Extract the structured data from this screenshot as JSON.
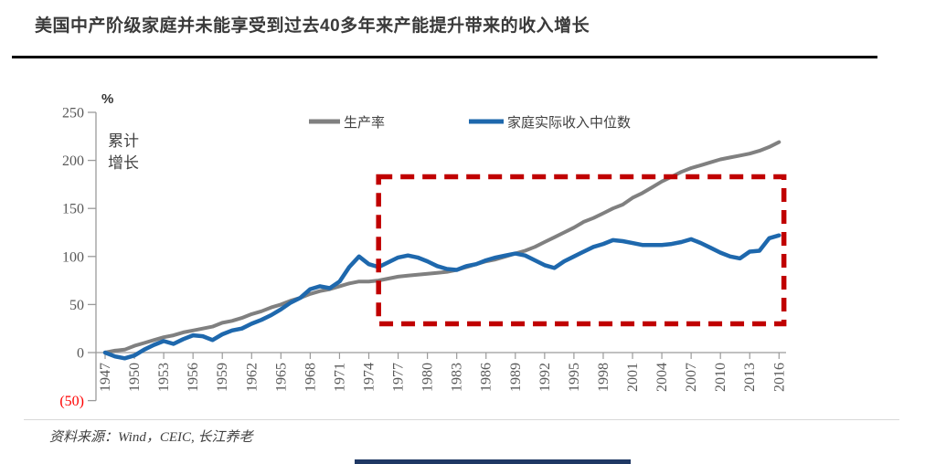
{
  "header": {
    "title": "美国中产阶级家庭并未能享受到过去40多年来产能提升带来的收入增长"
  },
  "chart_data": {
    "type": "line",
    "title": "美国中产阶级家庭并未能享受到过去40多年来产能提升带来的收入增长",
    "unit_label": "%",
    "axis_caption_lines": [
      "累计",
      "增长"
    ],
    "ylim": [
      -50,
      250
    ],
    "y_ticks": [
      250,
      200,
      150,
      100,
      50,
      0,
      -50
    ],
    "y_tick_labels": [
      "250",
      "200",
      "150",
      "100",
      "50",
      "0",
      "(50)"
    ],
    "x_tick_labels": [
      "1947",
      "1950",
      "1953",
      "1956",
      "1959",
      "1962",
      "1965",
      "1968",
      "1971",
      "1974",
      "1977",
      "1980",
      "1983",
      "1986",
      "1989",
      "1992",
      "1995",
      "1998",
      "2001",
      "2004",
      "2007",
      "2010",
      "2013",
      "2016"
    ],
    "x": [
      1947,
      1948,
      1949,
      1950,
      1951,
      1952,
      1953,
      1954,
      1955,
      1956,
      1957,
      1958,
      1959,
      1960,
      1961,
      1962,
      1963,
      1964,
      1965,
      1966,
      1967,
      1968,
      1969,
      1970,
      1971,
      1972,
      1973,
      1974,
      1975,
      1976,
      1977,
      1978,
      1979,
      1980,
      1981,
      1982,
      1983,
      1984,
      1985,
      1986,
      1987,
      1988,
      1989,
      1990,
      1991,
      1992,
      1993,
      1994,
      1995,
      1996,
      1997,
      1998,
      1999,
      2000,
      2001,
      2002,
      2003,
      2004,
      2005,
      2006,
      2007,
      2008,
      2009,
      2010,
      2011,
      2012,
      2013,
      2014,
      2015,
      2016
    ],
    "series": [
      {
        "name": "生产率",
        "color": "#808080",
        "values": [
          0,
          2,
          3,
          7,
          10,
          13,
          16,
          18,
          21,
          23,
          25,
          27,
          31,
          33,
          36,
          40,
          43,
          47,
          50,
          54,
          57,
          61,
          64,
          66,
          69,
          72,
          74,
          74,
          75,
          77,
          79,
          80,
          81,
          82,
          83,
          84,
          86,
          89,
          92,
          95,
          97,
          100,
          103,
          106,
          110,
          115,
          120,
          125,
          130,
          136,
          140,
          145,
          150,
          154,
          161,
          166,
          172,
          178,
          183,
          188,
          192,
          195,
          198,
          201,
          203,
          205,
          207,
          210,
          214,
          219
        ]
      },
      {
        "name": "家庭实际收入中位数",
        "color": "#1e68ad",
        "values": [
          0,
          -4,
          -6,
          -3,
          3,
          8,
          12,
          9,
          14,
          18,
          17,
          13,
          19,
          23,
          25,
          30,
          34,
          39,
          45,
          52,
          57,
          66,
          69,
          67,
          74,
          89,
          100,
          92,
          89,
          94,
          99,
          101,
          99,
          95,
          90,
          87,
          86,
          90,
          92,
          96,
          99,
          101,
          103,
          101,
          96,
          91,
          88,
          95,
          100,
          105,
          110,
          113,
          117,
          116,
          114,
          112,
          112,
          112,
          113,
          115,
          118,
          114,
          109,
          104,
          100,
          98,
          105,
          106,
          119,
          122
        ]
      }
    ],
    "annotation_box": {
      "x0": 1975,
      "x1": 2016.5,
      "y0": 30,
      "y1": 183,
      "style": "dashed",
      "color": "#c00000"
    },
    "legend_position": "top",
    "grid": false
  },
  "style": {
    "axis_color": "#9a9a9a",
    "tick_label_color": "#595959",
    "negative_label_color": "#ff0000",
    "caption_color": "#404040",
    "legend_text_color": "#404040",
    "highlight_color": "#c00000",
    "footer_bar_color": "#1f3864"
  },
  "source": {
    "text": "资料来源：Wind，CEIC, 长江养老"
  }
}
